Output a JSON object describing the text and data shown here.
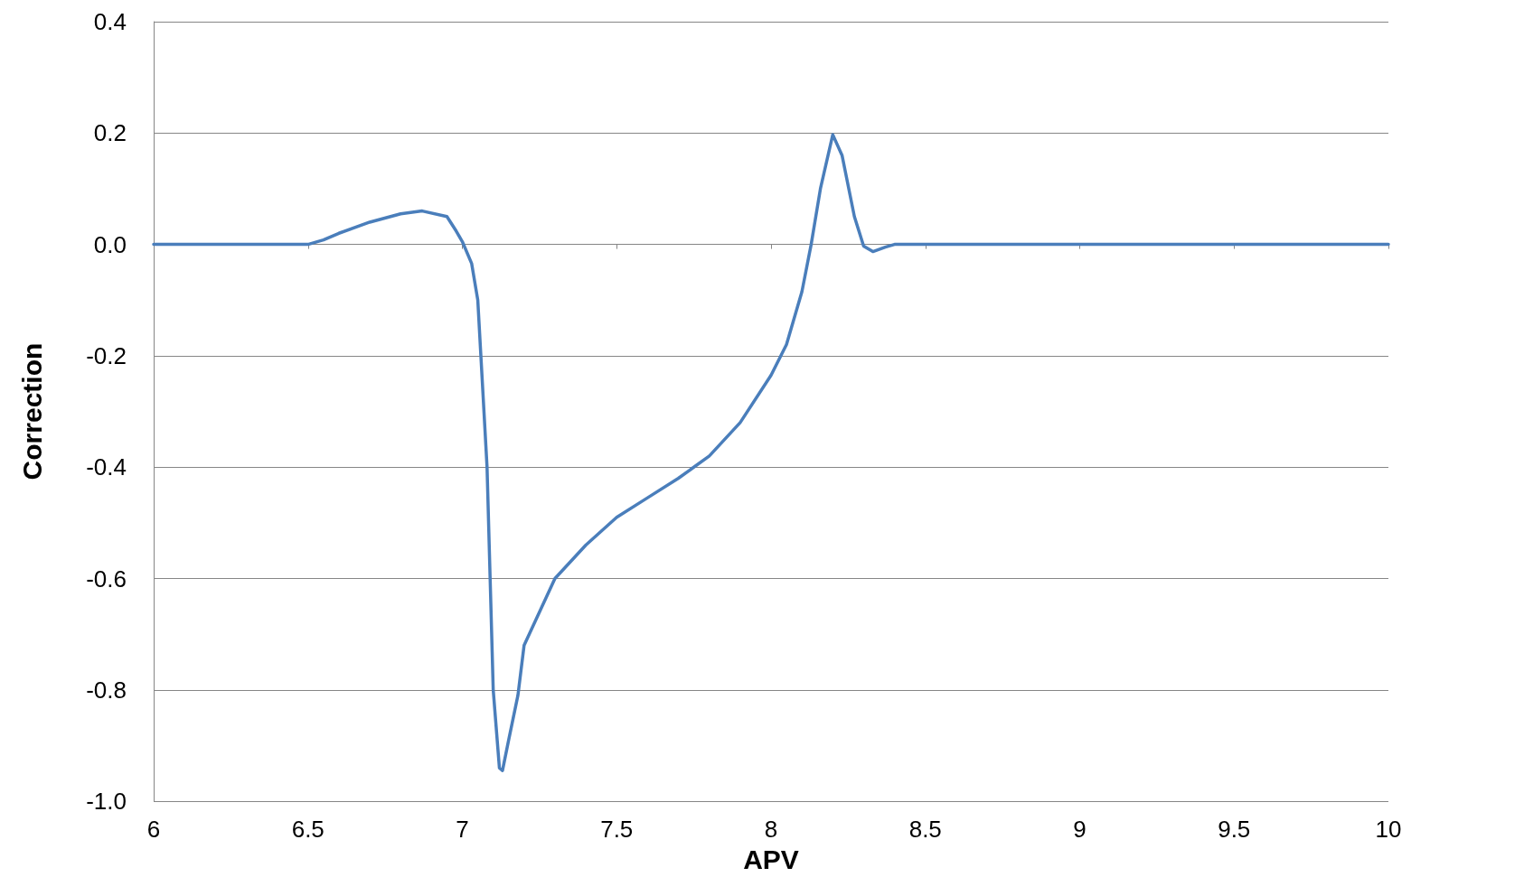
{
  "chart_data": {
    "type": "line",
    "xlabel": "APV",
    "ylabel": "Correction",
    "xlim": [
      6,
      10
    ],
    "xticks": [
      6,
      6.5,
      7,
      7.5,
      8,
      8.5,
      9,
      9.5,
      10
    ],
    "ylim": [
      -1.0,
      0.4
    ],
    "yticks": [
      {
        "value": -1.0,
        "label": "-1.0"
      },
      -0.8,
      -0.6,
      -0.4,
      -0.2,
      {
        "value": 0,
        "label": "0.0"
      },
      0.2,
      0.4
    ],
    "grid": "y",
    "marker": "none",
    "line_style": "solid",
    "series": [
      {
        "color": "#4a7ebb",
        "x": [
          6,
          6.5,
          6.55,
          6.6,
          6.7,
          6.8,
          6.87,
          6.95,
          6.98,
          7.0,
          7.03,
          7.05,
          7.06,
          7.08,
          7.09,
          7.1,
          7.12,
          7.13,
          7.15,
          7.18,
          7.2,
          7.25,
          7.3,
          7.4,
          7.5,
          7.6,
          7.7,
          7.8,
          7.9,
          8.0,
          8.05,
          8.1,
          8.13,
          8.16,
          8.2,
          8.23,
          8.27,
          8.3,
          8.33,
          8.37,
          8.4,
          10
        ],
        "values": [
          0,
          0,
          0.008,
          0.02,
          0.04,
          0.055,
          0.06,
          0.05,
          0.024,
          0.005,
          -0.034,
          -0.1,
          -0.2,
          -0.4,
          -0.6,
          -0.8,
          -0.94,
          -0.945,
          -0.89,
          -0.81,
          -0.72,
          -0.66,
          -0.6,
          -0.54,
          -0.49,
          -0.455,
          -0.42,
          -0.38,
          -0.32,
          -0.235,
          -0.18,
          -0.085,
          0,
          0.1,
          0.197,
          0.16,
          0.05,
          -0.003,
          -0.013,
          -0.005,
          0,
          0
        ]
      }
    ]
  }
}
